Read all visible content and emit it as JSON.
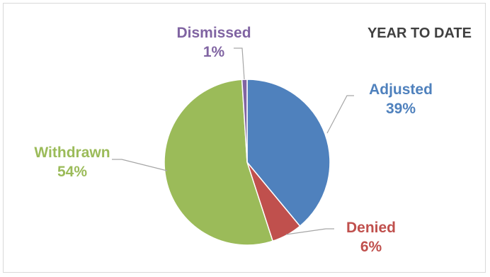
{
  "chart_data": {
    "type": "pie",
    "title": "YEAR TO DATE",
    "categories": [
      "Adjusted",
      "Denied",
      "Withdrawn",
      "Dismissed"
    ],
    "values": [
      39,
      6,
      54,
      1
    ],
    "value_labels": [
      "39%",
      "6%",
      "54%",
      "1%"
    ],
    "colors": [
      "#4f81bd",
      "#c0504d",
      "#9bbb59",
      "#8064a2"
    ],
    "legend": "none",
    "start_angle_deg": 0,
    "direction": "clockwise"
  }
}
